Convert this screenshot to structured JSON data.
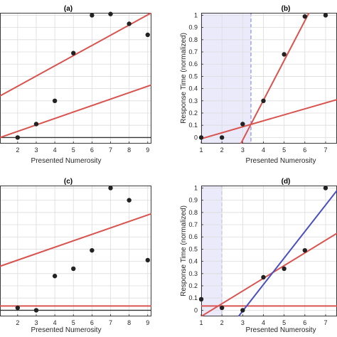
{
  "chart_data": [
    {
      "type": "scatter",
      "panel_label": "(a)",
      "xlabel": "Presented Numerosity",
      "ylabel": "",
      "xticks": [
        2,
        3,
        4,
        5,
        6,
        7,
        8,
        9
      ],
      "xlim": [
        1.05,
        9.2
      ],
      "ylim": [
        -0.05,
        1.02
      ],
      "grid": true,
      "baseline_y": 0,
      "points": [
        {
          "x": 2,
          "y": 0.0
        },
        {
          "x": 3,
          "y": 0.11
        },
        {
          "x": 4,
          "y": 0.3
        },
        {
          "x": 5,
          "y": 0.69
        },
        {
          "x": 6,
          "y": 1.0
        },
        {
          "x": 7,
          "y": 1.01
        },
        {
          "x": 8,
          "y": 0.93
        },
        {
          "x": 9,
          "y": 0.84
        }
      ],
      "fit_lines": [
        {
          "color": "#d9534f",
          "p1": [
            1.05,
            0.34
          ],
          "p2": [
            9.2,
            1.02
          ]
        },
        {
          "color": "#d9534f",
          "p1": [
            1.05,
            0.0
          ],
          "p2": [
            9.2,
            0.43
          ]
        }
      ]
    },
    {
      "type": "scatter",
      "panel_label": "(b)",
      "xlabel": "Presented Numerosity",
      "ylabel": "Response Time (normalized)",
      "xticks": [
        1,
        2,
        3,
        4,
        5,
        6,
        7
      ],
      "yticks": [
        "0",
        "0.1",
        "0.2",
        "0.3",
        "0.4",
        "0.5",
        "0.6",
        "0.7",
        "0.8",
        "0.9",
        "1"
      ],
      "xlim": [
        1,
        7.55
      ],
      "ylim": [
        -0.05,
        1.02
      ],
      "grid": true,
      "shade": {
        "from": 1,
        "to": 3.4,
        "color": "#e6e6fa"
      },
      "points": [
        {
          "x": 1,
          "y": 0.0
        },
        {
          "x": 2,
          "y": 0.0
        },
        {
          "x": 3,
          "y": 0.11
        },
        {
          "x": 4,
          "y": 0.3
        },
        {
          "x": 5,
          "y": 0.68
        },
        {
          "x": 6,
          "y": 0.99
        },
        {
          "x": 7,
          "y": 1.0
        }
      ],
      "fit_lines": [
        {
          "color": "#d9534f",
          "p1": [
            1,
            -0.01
          ],
          "p2": [
            7.55,
            0.31
          ]
        },
        {
          "color": "#d9534f",
          "p1": [
            2.85,
            -0.07
          ],
          "p2": [
            6.2,
            1.02
          ]
        }
      ]
    },
    {
      "type": "scatter",
      "panel_label": "(c)",
      "xlabel": "Presented Numerosity",
      "ylabel": "",
      "xticks": [
        2,
        3,
        4,
        5,
        6,
        7,
        8,
        9
      ],
      "xlim": [
        1.05,
        9.2
      ],
      "ylim": [
        -0.05,
        1.02
      ],
      "grid": true,
      "baseline_y": 0,
      "points": [
        {
          "x": 2,
          "y": 0.02
        },
        {
          "x": 3,
          "y": 0.0
        },
        {
          "x": 4,
          "y": 0.28
        },
        {
          "x": 5,
          "y": 0.34
        },
        {
          "x": 6,
          "y": 0.49
        },
        {
          "x": 7,
          "y": 1.0
        },
        {
          "x": 8,
          "y": 0.9
        },
        {
          "x": 9,
          "y": 0.41
        }
      ],
      "fit_lines": [
        {
          "color": "#d9534f",
          "p1": [
            1.05,
            0.36
          ],
          "p2": [
            9.2,
            0.79
          ]
        },
        {
          "color": "#d9534f",
          "p1": [
            1.05,
            0.035
          ],
          "p2": [
            9.2,
            0.035
          ]
        }
      ]
    },
    {
      "type": "scatter",
      "panel_label": "(d)",
      "xlabel": "Presented Numerosity",
      "ylabel": "Response Time (normalized)",
      "xticks": [
        1,
        2,
        3,
        4,
        5,
        6,
        7
      ],
      "yticks": [
        "0",
        "0.1",
        "0.2",
        "0.3",
        "0.4",
        "0.5",
        "0.6",
        "0.7",
        "0.8",
        "0.9",
        "1"
      ],
      "xlim": [
        1,
        7.55
      ],
      "ylim": [
        -0.05,
        1.02
      ],
      "grid": true,
      "shade": {
        "from": 1,
        "to": 2.0,
        "color": "#e6e6fa"
      },
      "points": [
        {
          "x": 1,
          "y": 0.09
        },
        {
          "x": 2,
          "y": 0.02
        },
        {
          "x": 3,
          "y": 0.0
        },
        {
          "x": 4,
          "y": 0.27
        },
        {
          "x": 5,
          "y": 0.34
        },
        {
          "x": 6,
          "y": 0.49
        },
        {
          "x": 7,
          "y": 1.0
        }
      ],
      "fit_lines": [
        {
          "color": "#d9534f",
          "p1": [
            1,
            -0.05
          ],
          "p2": [
            7.55,
            0.63
          ]
        },
        {
          "color": "#d9534f",
          "p1": [
            1,
            0.035
          ],
          "p2": [
            7.55,
            0.035
          ]
        },
        {
          "color": "#4b4fbf",
          "p1": [
            2.8,
            -0.05
          ],
          "p2": [
            7.55,
            0.98
          ]
        }
      ]
    }
  ]
}
